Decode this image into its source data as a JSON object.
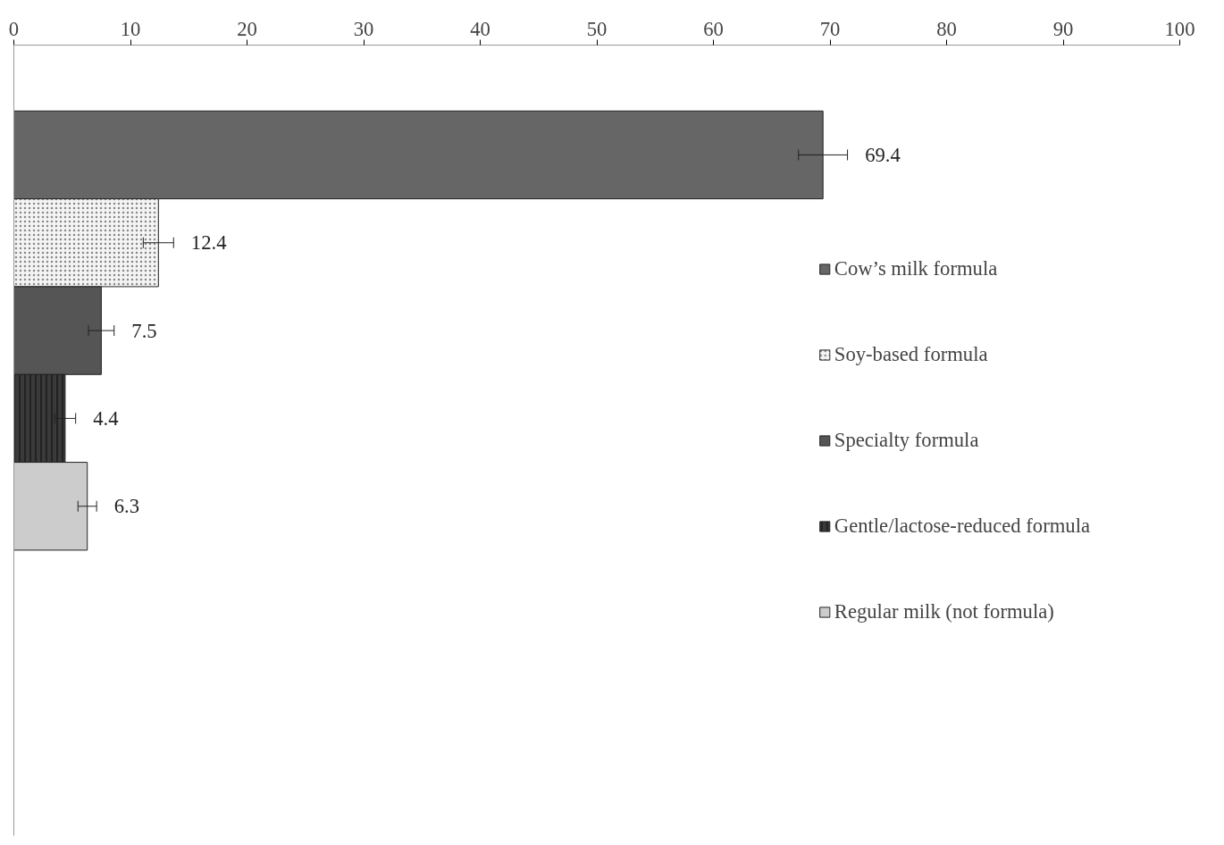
{
  "chart_data": {
    "type": "bar",
    "orientation": "horizontal",
    "categories": [
      null
    ],
    "series": [
      {
        "name": "Cow’s milk formula",
        "color": "#666666",
        "values": [
          69.4
        ],
        "errors": [
          2.1
        ]
      },
      {
        "name": "Soy-based formula",
        "color": "#f4f4f4",
        "values": [
          12.4
        ],
        "errors": [
          1.3
        ]
      },
      {
        "name": "Specialty formula",
        "color": "#555555",
        "values": [
          7.5
        ],
        "errors": [
          1.1
        ]
      },
      {
        "name": "Gentle/lactose-reduced formula",
        "color": "#3a3a3a",
        "values": [
          4.4
        ],
        "errors": [
          0.9
        ]
      },
      {
        "name": "Regular milk (not formula)",
        "color": "#cccccc",
        "values": [
          6.3
        ],
        "errors": [
          0.8
        ]
      }
    ],
    "xlim": [
      0,
      100
    ],
    "xticks": [
      0,
      10,
      20,
      30,
      40,
      50,
      60,
      70,
      80,
      90,
      100
    ],
    "data_labels": true,
    "grid": false,
    "legend": "right"
  }
}
